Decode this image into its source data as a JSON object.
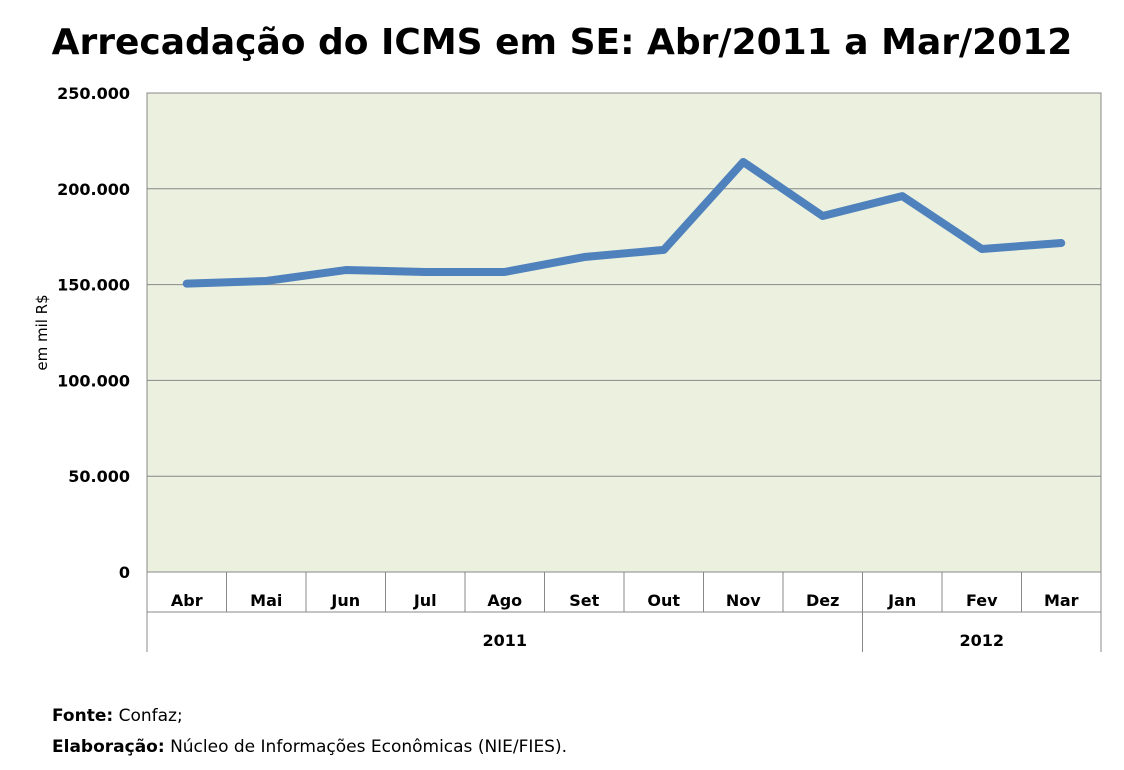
{
  "chart_data": {
    "type": "line",
    "title": "Arrecadação do ICMS em SE: Abr/2011 a Mar/2012",
    "ylabel": "em mil R$",
    "xlabel": "",
    "ylim": [
      0,
      250000
    ],
    "yticks": [
      0,
      50000,
      100000,
      150000,
      200000,
      250000
    ],
    "ytick_labels": [
      "0",
      "50.000",
      "100.000",
      "150.000",
      "200.000",
      "250.000"
    ],
    "grid": true,
    "categories": [
      "Abr",
      "Mai",
      "Jun",
      "Jul",
      "Ago",
      "Set",
      "Out",
      "Nov",
      "Dez",
      "Jan",
      "Fev",
      "Mar"
    ],
    "groups": [
      {
        "label": "2011",
        "count": 9
      },
      {
        "label": "2012",
        "count": 3
      }
    ],
    "series": [
      {
        "name": "ICMS",
        "color": "#4f81bd",
        "values": [
          150500,
          151900,
          157600,
          156600,
          156600,
          164400,
          168100,
          214000,
          185800,
          196200,
          168600,
          171700
        ]
      }
    ],
    "plot_bg": "#ebf1de"
  },
  "footer": {
    "source_label": "Fonte:",
    "source_value": "Confaz;",
    "author_label": "Elaboração:",
    "author_value": "Núcleo de Informações Econômicas (NIE/FIES)."
  }
}
